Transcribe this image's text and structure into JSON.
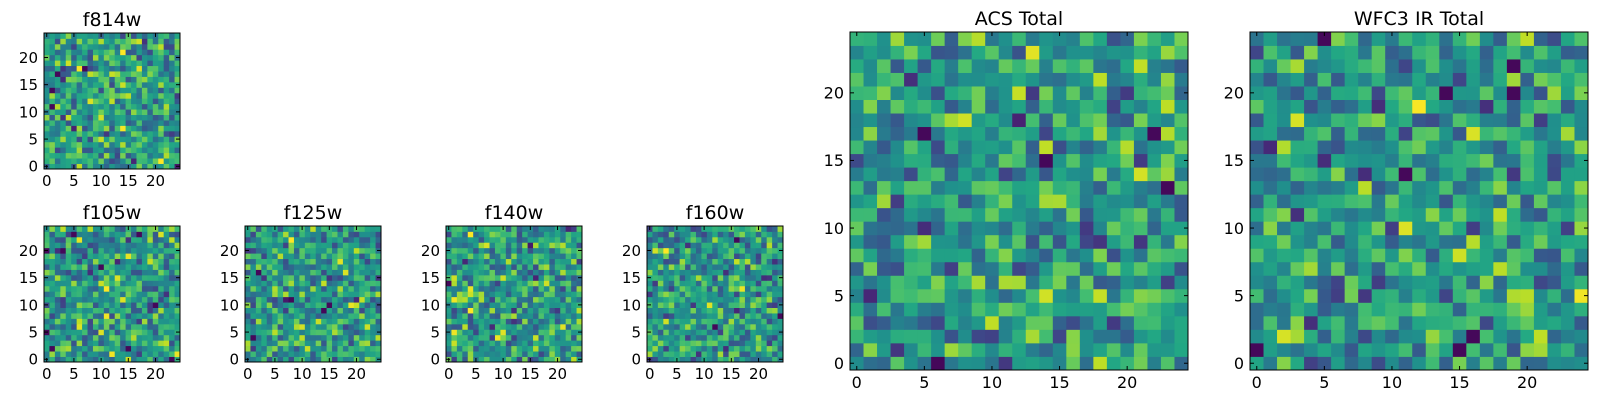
{
  "chart_data": [
    {
      "type": "heatmap",
      "title": "f814w",
      "seed": 11,
      "xticks": [
        0,
        5,
        10,
        15,
        20
      ],
      "yticks": [
        0,
        5,
        10,
        15,
        20
      ],
      "xlim": [
        -0.5,
        24.5
      ],
      "ylim": [
        -0.5,
        24.5
      ],
      "colormap": "viridis",
      "grid_size": [
        25,
        25
      ],
      "xlabel": "",
      "ylabel": ""
    },
    {
      "type": "heatmap",
      "title": "f105w",
      "seed": 23,
      "xticks": [
        0,
        5,
        10,
        15,
        20
      ],
      "yticks": [
        0,
        5,
        10,
        15,
        20
      ],
      "xlim": [
        -0.5,
        24.5
      ],
      "ylim": [
        -0.5,
        24.5
      ],
      "colormap": "viridis",
      "grid_size": [
        25,
        25
      ],
      "xlabel": "",
      "ylabel": ""
    },
    {
      "type": "heatmap",
      "title": "f125w",
      "seed": 37,
      "xticks": [
        0,
        5,
        10,
        15,
        20
      ],
      "yticks": [
        0,
        5,
        10,
        15,
        20
      ],
      "xlim": [
        -0.5,
        24.5
      ],
      "ylim": [
        -0.5,
        24.5
      ],
      "colormap": "viridis",
      "grid_size": [
        25,
        25
      ],
      "xlabel": "",
      "ylabel": ""
    },
    {
      "type": "heatmap",
      "title": "f140w",
      "seed": 41,
      "xticks": [
        0,
        5,
        10,
        15,
        20
      ],
      "yticks": [
        0,
        5,
        10,
        15,
        20
      ],
      "xlim": [
        -0.5,
        24.5
      ],
      "ylim": [
        -0.5,
        24.5
      ],
      "colormap": "viridis",
      "grid_size": [
        25,
        25
      ],
      "xlabel": "",
      "ylabel": ""
    },
    {
      "type": "heatmap",
      "title": "f160w",
      "seed": 53,
      "xticks": [
        0,
        5,
        10,
        15,
        20
      ],
      "yticks": [
        0,
        5,
        10,
        15,
        20
      ],
      "xlim": [
        -0.5,
        24.5
      ],
      "ylim": [
        -0.5,
        24.5
      ],
      "colormap": "viridis",
      "grid_size": [
        25,
        25
      ],
      "xlabel": "",
      "ylabel": ""
    },
    {
      "type": "heatmap",
      "title": "ACS Total",
      "seed": 67,
      "xticks": [
        0,
        5,
        10,
        15,
        20
      ],
      "yticks": [
        0,
        5,
        10,
        15,
        20
      ],
      "xlim": [
        -0.5,
        24.5
      ],
      "ylim": [
        -0.5,
        24.5
      ],
      "colormap": "viridis",
      "grid_size": [
        25,
        25
      ],
      "xlabel": "",
      "ylabel": ""
    },
    {
      "type": "heatmap",
      "title": "WFC3 IR Total",
      "seed": 79,
      "xticks": [
        0,
        5,
        10,
        15,
        20
      ],
      "yticks": [
        0,
        5,
        10,
        15,
        20
      ],
      "xlim": [
        -0.5,
        24.5
      ],
      "ylim": [
        -0.5,
        24.5
      ],
      "colormap": "viridis",
      "grid_size": [
        25,
        25
      ],
      "xlabel": "",
      "ylabel": ""
    }
  ]
}
